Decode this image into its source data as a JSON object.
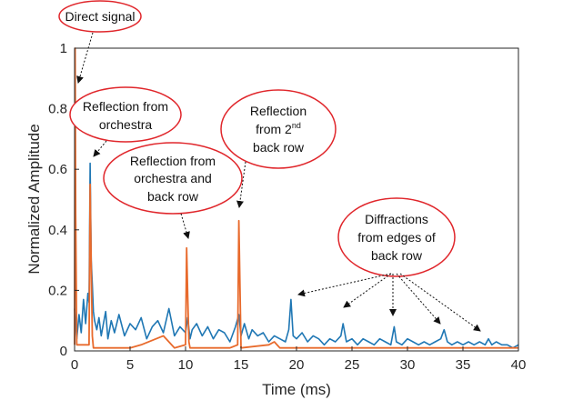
{
  "colors": {
    "series_blue": "#1f77b4",
    "series_orange": "#e86a2c",
    "annotation_red": "#e0262b",
    "axis": "#262626"
  },
  "chart_data": {
    "type": "line",
    "title": "",
    "xlabel": "Time (ms)",
    "ylabel": "Normalized Amplitude",
    "xlim": [
      0,
      40
    ],
    "ylim": [
      0,
      1
    ],
    "xticks": [
      "0",
      "5",
      "10",
      "15",
      "20",
      "25",
      "30",
      "35",
      "40"
    ],
    "yticks": [
      "0",
      "0.2",
      "0.4",
      "0.6",
      "0.8",
      "1"
    ],
    "grid": false,
    "legend": "none",
    "series": [
      {
        "color": "#1f77b4",
        "x": [
          0.0,
          0.2,
          0.4,
          0.6,
          0.8,
          1.0,
          1.2,
          1.3,
          1.4,
          1.5,
          1.6,
          1.7,
          1.8,
          2.0,
          2.2,
          2.4,
          2.6,
          2.8,
          3.0,
          3.3,
          3.6,
          4.0,
          4.5,
          5.0,
          5.5,
          6.0,
          6.5,
          7.0,
          7.5,
          8.0,
          8.5,
          9.0,
          9.5,
          10.0,
          10.2,
          10.4,
          10.6,
          11.0,
          11.5,
          12.0,
          12.5,
          13.0,
          13.5,
          14.0,
          14.5,
          14.8,
          15.0,
          15.3,
          15.7,
          16.0,
          16.5,
          17.0,
          17.5,
          18.0,
          18.5,
          19.0,
          19.3,
          19.5,
          19.7,
          20.0,
          20.5,
          21.0,
          21.5,
          22.0,
          22.5,
          23.0,
          23.5,
          24.0,
          24.2,
          24.5,
          25.0,
          25.5,
          26.0,
          26.5,
          27.0,
          27.5,
          28.0,
          28.5,
          28.8,
          29.0,
          29.5,
          30.0,
          30.5,
          31.0,
          31.5,
          32.0,
          32.5,
          33.0,
          33.3,
          33.6,
          34.0,
          34.5,
          35.0,
          35.5,
          36.0,
          36.5,
          37.0,
          37.3,
          37.6,
          38.0,
          38.5,
          39.0,
          39.5,
          40.0
        ],
        "y": [
          0.14,
          0.04,
          0.12,
          0.06,
          0.17,
          0.09,
          0.19,
          0.16,
          0.62,
          0.3,
          0.22,
          0.13,
          0.1,
          0.07,
          0.11,
          0.05,
          0.09,
          0.13,
          0.04,
          0.1,
          0.06,
          0.12,
          0.05,
          0.09,
          0.07,
          0.11,
          0.04,
          0.08,
          0.1,
          0.06,
          0.14,
          0.05,
          0.08,
          0.06,
          0.11,
          0.04,
          0.07,
          0.09,
          0.05,
          0.08,
          0.04,
          0.07,
          0.06,
          0.03,
          0.08,
          0.12,
          0.05,
          0.09,
          0.04,
          0.07,
          0.05,
          0.06,
          0.03,
          0.05,
          0.04,
          0.03,
          0.07,
          0.17,
          0.05,
          0.04,
          0.06,
          0.03,
          0.05,
          0.04,
          0.02,
          0.04,
          0.03,
          0.05,
          0.09,
          0.03,
          0.04,
          0.02,
          0.04,
          0.03,
          0.02,
          0.04,
          0.03,
          0.02,
          0.08,
          0.03,
          0.02,
          0.04,
          0.03,
          0.02,
          0.03,
          0.02,
          0.03,
          0.04,
          0.07,
          0.03,
          0.02,
          0.03,
          0.02,
          0.03,
          0.02,
          0.03,
          0.02,
          0.04,
          0.02,
          0.03,
          0.02,
          0.02,
          0.01,
          0.02
        ]
      },
      {
        "color": "#e86a2c",
        "x": [
          0.0,
          0.05,
          0.1,
          0.2,
          1.3,
          1.4,
          1.5,
          1.6,
          1.7,
          5.0,
          6.0,
          8.0,
          9.0,
          10.0,
          10.1,
          10.2,
          10.3,
          10.4,
          12.0,
          14.0,
          14.7,
          14.8,
          14.9,
          15.0,
          17.5,
          18.0,
          18.5,
          20.0,
          25.0,
          30.0,
          35.0,
          40.0
        ],
        "y": [
          0.02,
          1.0,
          0.45,
          0.02,
          0.02,
          0.55,
          0.28,
          0.05,
          0.01,
          0.01,
          0.02,
          0.05,
          0.01,
          0.02,
          0.34,
          0.18,
          0.03,
          0.01,
          0.01,
          0.01,
          0.02,
          0.43,
          0.22,
          0.01,
          0.02,
          0.03,
          0.01,
          0.01,
          0.01,
          0.01,
          0.01,
          0.01
        ]
      }
    ],
    "annotations": [
      {
        "lines": [
          "Direct signal"
        ]
      },
      {
        "lines": [
          "Reflection from",
          "orchestra"
        ]
      },
      {
        "lines": [
          "Reflection",
          "from 2nd",
          "back row"
        ]
      },
      {
        "lines": [
          "Reflection from",
          "orchestra and",
          "back row"
        ]
      },
      {
        "lines": [
          "Diffractions",
          "from edges of",
          "back row"
        ]
      }
    ]
  }
}
